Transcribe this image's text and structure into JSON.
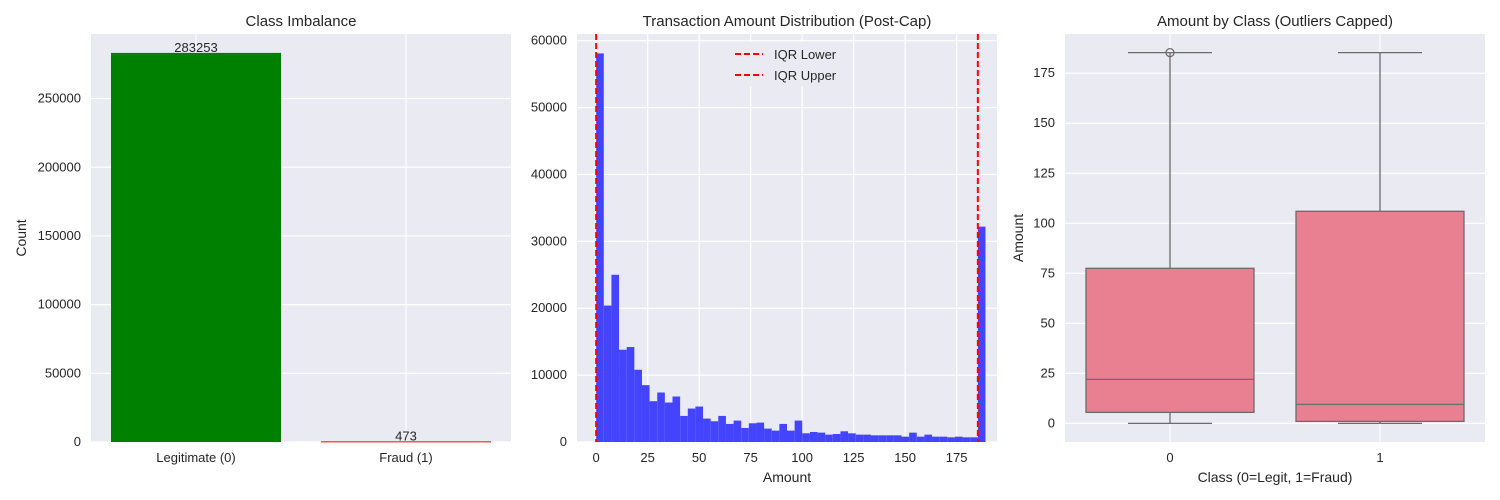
{
  "chart_data": [
    {
      "type": "bar",
      "title": "Class Imbalance",
      "xlabel": "",
      "ylabel": "Count",
      "categories": [
        "Legitimate (0)",
        "Fraud (1)"
      ],
      "values": [
        283253,
        473
      ],
      "data_labels": [
        "283253",
        "473"
      ],
      "colors": [
        "#008000",
        "#ff0000"
      ],
      "ylim": [
        0,
        297000
      ],
      "yticks": [
        0,
        50000,
        100000,
        150000,
        200000,
        250000
      ],
      "ytick_labels": [
        "0",
        "50000",
        "100000",
        "150000",
        "200000",
        "250000"
      ],
      "grid": true
    },
    {
      "type": "bar",
      "title": "Transaction Amount Distribution (Post-Cap)",
      "xlabel": "Amount",
      "ylabel": "",
      "bin_edges_start": 0,
      "bin_width": 3.706,
      "counts": [
        58100,
        20400,
        25000,
        13800,
        14200,
        10800,
        8500,
        6100,
        7400,
        5900,
        6800,
        3900,
        5000,
        5300,
        3500,
        3100,
        3900,
        2700,
        3200,
        2100,
        2800,
        2900,
        2000,
        1700,
        2700,
        1700,
        3200,
        1300,
        1500,
        1400,
        1100,
        1200,
        1600,
        1300,
        1100,
        1100,
        1000,
        1000,
        1000,
        1000,
        800,
        1400,
        800,
        1100,
        800,
        800,
        700,
        800,
        700,
        700,
        32200
      ],
      "color": "#4444ff",
      "xlim": [
        -9.3,
        194.6
      ],
      "ylim": [
        0,
        61000
      ],
      "xticks": [
        0,
        25,
        50,
        75,
        100,
        125,
        150,
        175
      ],
      "xtick_labels": [
        "0",
        "25",
        "50",
        "75",
        "100",
        "125",
        "150",
        "175"
      ],
      "yticks": [
        0,
        10000,
        20000,
        30000,
        40000,
        50000,
        60000
      ],
      "ytick_labels": [
        "0",
        "10000",
        "20000",
        "30000",
        "40000",
        "50000",
        "60000"
      ],
      "vlines": [
        {
          "name": "IQR Lower",
          "x": 0,
          "color": "#ff0000"
        },
        {
          "name": "IQR Upper",
          "x": 185.3,
          "color": "#ff0000"
        }
      ],
      "legend": "upper-center",
      "grid": true
    },
    {
      "type": "box",
      "title": "Amount by Class (Outliers Capped)",
      "xlabel": "Class (0=Legit, 1=Fraud)",
      "ylabel": "Amount",
      "categories": [
        "0",
        "1"
      ],
      "boxes": [
        {
          "whisker_low": 0,
          "q1": 5.5,
          "median": 22,
          "q3": 77.5,
          "whisker_high": 185.3,
          "outliers": [
            185.3
          ]
        },
        {
          "whisker_low": 0,
          "q1": 1,
          "median": 9.5,
          "q3": 106,
          "whisker_high": 185.3,
          "outliers": []
        }
      ],
      "color": "#e88092",
      "ylim": [
        -9.3,
        194.6
      ],
      "yticks": [
        0,
        25,
        50,
        75,
        100,
        125,
        150,
        175
      ],
      "ytick_labels": [
        "0",
        "25",
        "50",
        "75",
        "100",
        "125",
        "150",
        "175"
      ],
      "grid": true
    }
  ]
}
